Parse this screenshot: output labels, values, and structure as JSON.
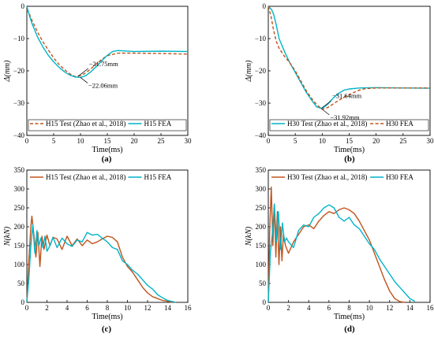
{
  "chart_data": [
    {
      "type": "line",
      "panel": "(a)",
      "xlabel": "Time(ms)",
      "ylabel": "Δ(mm)",
      "xlim": [
        0,
        30
      ],
      "ylim": [
        -40,
        0
      ],
      "xticks": [
        0,
        5,
        10,
        15,
        20,
        25,
        30
      ],
      "yticks": [
        0,
        -10,
        -20,
        -30,
        -40
      ],
      "legend": "bottom",
      "series": [
        {
          "name": "H15 Test (Zhao et al., 2018)",
          "style": "dashed",
          "color": "#c0531b",
          "x": [
            0,
            0.5,
            1,
            2,
            3,
            4,
            5,
            6,
            7,
            8,
            9,
            10,
            11,
            12,
            13,
            14,
            15,
            17,
            20,
            25,
            30
          ],
          "y": [
            -1,
            -2.5,
            -4.5,
            -8,
            -11,
            -13.5,
            -16,
            -18,
            -19.6,
            -20.9,
            -21.75,
            -21.5,
            -20.6,
            -19.3,
            -17.8,
            -16.4,
            -15.3,
            -14.5,
            -14.5,
            -14.6,
            -14.8
          ]
        },
        {
          "name": "H15 FEA",
          "style": "solid",
          "color": "#00b4c8",
          "x": [
            0,
            0.5,
            1,
            2,
            3,
            4,
            5,
            6,
            7,
            8,
            9,
            10,
            11,
            12,
            13,
            14,
            15,
            16,
            17,
            20,
            25,
            30
          ],
          "y": [
            0,
            -3,
            -5.5,
            -9.5,
            -12.6,
            -15.2,
            -17.2,
            -18.9,
            -20.3,
            -21.3,
            -21.9,
            -22.06,
            -21.5,
            -20.2,
            -18.6,
            -16.8,
            -15.2,
            -14,
            -13.7,
            -14,
            -13.9,
            -14
          ]
        }
      ],
      "annotations": [
        {
          "text": "−21.75mm",
          "x": 9.5,
          "y": -21.75
        },
        {
          "text": "−22.06mm",
          "x": 10,
          "y": -22.06
        }
      ]
    },
    {
      "type": "line",
      "panel": "(b)",
      "xlabel": "Time(ms)",
      "ylabel": "Δ(mm)",
      "xlim": [
        0,
        30
      ],
      "ylim": [
        -40,
        0
      ],
      "xticks": [
        0,
        5,
        10,
        15,
        20,
        25,
        30
      ],
      "yticks": [
        0,
        -10,
        -20,
        -30,
        -40
      ],
      "legend": "bottom",
      "series": [
        {
          "name": "H30 Test (Zhao et al., 2018)",
          "style": "solid",
          "color": "#00b4c8",
          "x": [
            0,
            0.3,
            0.6,
            1,
            1.5,
            2,
            3,
            4,
            5,
            6,
            7,
            8,
            9,
            10,
            11,
            12,
            13,
            14,
            15,
            17,
            20,
            25,
            30
          ],
          "y": [
            0,
            -0.5,
            -1,
            -2.5,
            -6,
            -10,
            -14,
            -17.5,
            -20.5,
            -23.5,
            -26.5,
            -29,
            -31.2,
            -31.64,
            -30.4,
            -28.5,
            -27,
            -26,
            -25.6,
            -25.3,
            -25.2,
            -25.3,
            -25.4
          ]
        },
        {
          "name": "H30 FEA",
          "style": "dashed",
          "color": "#c0531b",
          "x": [
            0,
            0.5,
            1,
            1.5,
            2,
            3,
            4,
            5,
            6,
            7,
            8,
            9,
            10,
            11,
            12,
            13,
            14,
            15,
            16,
            17,
            18,
            20,
            25,
            30
          ],
          "y": [
            0,
            -3,
            -7.5,
            -11,
            -13,
            -15.5,
            -17.5,
            -20,
            -23,
            -26,
            -28.5,
            -30.5,
            -31.92,
            -31.4,
            -30.3,
            -29.2,
            -28.2,
            -27.4,
            -26.6,
            -25.9,
            -25.5,
            -25.3,
            -25.3,
            -25.3
          ]
        }
      ],
      "annotations": [
        {
          "text": "−31.64mm",
          "x": 9.8,
          "y": -31.64
        },
        {
          "text": "−31.92mm",
          "x": 10,
          "y": -31.92
        }
      ]
    },
    {
      "type": "line",
      "panel": "(c)",
      "xlabel": "Time(ms)",
      "ylabel": "N(kN)",
      "xlim": [
        0,
        16
      ],
      "ylim": [
        0,
        350
      ],
      "xticks": [
        0,
        2,
        4,
        6,
        8,
        10,
        12,
        14,
        16
      ],
      "yticks": [
        0,
        50,
        100,
        150,
        200,
        250,
        300,
        350
      ],
      "legend": "top",
      "series": [
        {
          "name": "H15 Test (Zhao et al., 2018)",
          "style": "solid",
          "color": "#c0531b",
          "x": [
            0,
            0.2,
            0.4,
            0.5,
            0.7,
            0.9,
            1.1,
            1.3,
            1.5,
            1.7,
            2.0,
            2.3,
            2.6,
            3.0,
            3.5,
            4.0,
            4.5,
            5.0,
            5.5,
            6.0,
            6.5,
            7.0,
            7.5,
            8.0,
            8.5,
            9.0,
            9.5,
            10.0,
            10.5,
            11.0,
            11.5,
            12.0,
            12.5,
            13.0,
            13.5,
            14.0,
            14.5
          ],
          "y": [
            0,
            110,
            200,
            228,
            180,
            120,
            185,
            95,
            175,
            140,
            178,
            150,
            172,
            168,
            140,
            175,
            150,
            168,
            150,
            165,
            155,
            160,
            168,
            175,
            172,
            160,
            120,
            95,
            80,
            60,
            40,
            25,
            15,
            10,
            5,
            3,
            0
          ]
        },
        {
          "name": "H15 FEA",
          "style": "solid",
          "color": "#00b4c8",
          "x": [
            0,
            0.2,
            0.4,
            0.6,
            0.8,
            1.0,
            1.2,
            1.4,
            1.6,
            1.8,
            2.0,
            2.3,
            2.6,
            3.0,
            3.5,
            4.0,
            4.5,
            5.0,
            5.5,
            6.0,
            6.5,
            7.0,
            7.5,
            8.0,
            8.5,
            9.0,
            9.5,
            10.0,
            10.5,
            11.0,
            11.5,
            12.0,
            12.5,
            13.0,
            13.5,
            14.0,
            14.5,
            14.8
          ],
          "y": [
            0,
            60,
            150,
            205,
            130,
            190,
            150,
            170,
            145,
            175,
            135,
            150,
            172,
            145,
            170,
            155,
            148,
            165,
            160,
            185,
            178,
            180,
            170,
            160,
            145,
            140,
            110,
            100,
            85,
            75,
            60,
            45,
            35,
            20,
            12,
            5,
            2,
            0
          ]
        }
      ]
    },
    {
      "type": "line",
      "panel": "(d)",
      "xlabel": "Time(ms)",
      "ylabel": "N(kN)",
      "xlim": [
        0,
        16
      ],
      "ylim": [
        0,
        350
      ],
      "xticks": [
        0,
        2,
        4,
        6,
        8,
        10,
        12,
        14,
        16
      ],
      "yticks": [
        0,
        50,
        100,
        150,
        200,
        250,
        300,
        350
      ],
      "legend": "top",
      "series": [
        {
          "name": "H30 Test (Zhao et al., 2018)",
          "style": "solid",
          "color": "#c0531b",
          "x": [
            0,
            0.15,
            0.3,
            0.45,
            0.6,
            0.75,
            0.9,
            1.05,
            1.2,
            1.35,
            1.5,
            1.7,
            2.0,
            2.5,
            3.0,
            3.5,
            4.0,
            4.5,
            5.0,
            5.5,
            6.0,
            6.5,
            7.0,
            7.5,
            8.0,
            8.5,
            9.0,
            9.5,
            10.0,
            10.5,
            11.0,
            11.5,
            12.0,
            12.5,
            13.0,
            13.5
          ],
          "y": [
            0,
            200,
            305,
            150,
            260,
            120,
            240,
            100,
            200,
            110,
            180,
            150,
            130,
            160,
            180,
            200,
            205,
            195,
            215,
            230,
            240,
            235,
            245,
            250,
            245,
            235,
            215,
            190,
            165,
            130,
            95,
            60,
            30,
            10,
            2,
            0
          ]
        },
        {
          "name": "H30 FEA",
          "style": "solid",
          "color": "#00b4c8",
          "x": [
            0,
            0.2,
            0.4,
            0.6,
            0.8,
            1.0,
            1.2,
            1.4,
            1.6,
            1.8,
            2.0,
            2.5,
            3.0,
            3.5,
            4.0,
            4.5,
            5.0,
            5.5,
            6.0,
            6.5,
            7.0,
            7.5,
            8.0,
            8.5,
            9.0,
            9.5,
            10.0,
            10.5,
            11.0,
            11.5,
            12.0,
            12.5,
            13.0,
            13.5,
            14.0,
            14.5
          ],
          "y": [
            0,
            130,
            180,
            260,
            160,
            240,
            140,
            210,
            160,
            170,
            160,
            145,
            190,
            205,
            200,
            225,
            235,
            250,
            258,
            250,
            225,
            215,
            225,
            205,
            195,
            175,
            155,
            140,
            115,
            95,
            75,
            55,
            40,
            25,
            10,
            3
          ]
        }
      ]
    }
  ]
}
